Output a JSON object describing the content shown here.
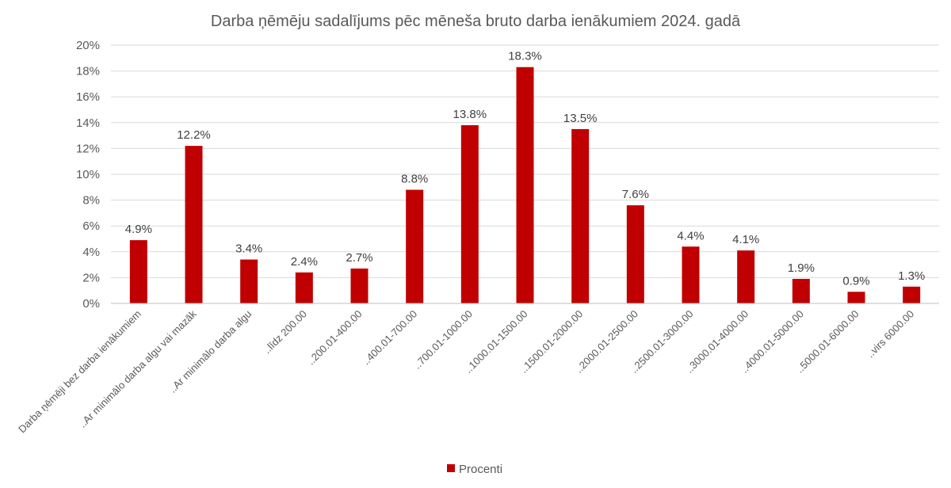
{
  "chart_data": {
    "type": "bar",
    "title": "Darba ņēmēju sadalījums pēc mēneša bruto darba ienākumiem 2024. gadā",
    "xlabel": "",
    "ylabel": "",
    "ylim": [
      0,
      20
    ],
    "ytick_values": [
      0,
      2,
      4,
      6,
      8,
      10,
      12,
      14,
      16,
      18,
      20
    ],
    "ytick_labels": [
      "0%",
      "2%",
      "4%",
      "6%",
      "8%",
      "10%",
      "12%",
      "14%",
      "16%",
      "18%",
      "20%"
    ],
    "grid": true,
    "legend_position": "bottom",
    "categories": [
      "Darba ņēmēji bez darba ienākumiem",
      "..Ar minimālo darba algu vai mazāk",
      "..Ar minimālo darba algu",
      "..līdz 200.00",
      "..200.01-400.00",
      "..400.01-700.00",
      "..700.01-1000.00",
      "..1000.01-1500.00",
      "..1500.01-2000.00",
      "..2000.01-2500.00",
      "..2500.01-3000.00",
      "..3000.01-4000.00",
      "..4000.01-5000.00",
      "..5000.01-6000.00",
      "..virs 6000.00"
    ],
    "series": [
      {
        "name": "Procenti",
        "color": "#c00000",
        "values": [
          4.9,
          12.2,
          3.4,
          2.4,
          2.7,
          8.8,
          13.8,
          18.3,
          13.5,
          7.6,
          4.4,
          4.1,
          1.9,
          0.9,
          1.3
        ],
        "labels": [
          "4.9%",
          "12.2%",
          "3.4%",
          "2.4%",
          "2.7%",
          "8.8%",
          "13.8%",
          "18.3%",
          "13.5%",
          "7.6%",
          "4.4%",
          "4.1%",
          "1.9%",
          "0.9%",
          "1.3%"
        ]
      }
    ],
    "gridline_color": "#d9d9d9",
    "axis_color": "#bfbfbf"
  }
}
